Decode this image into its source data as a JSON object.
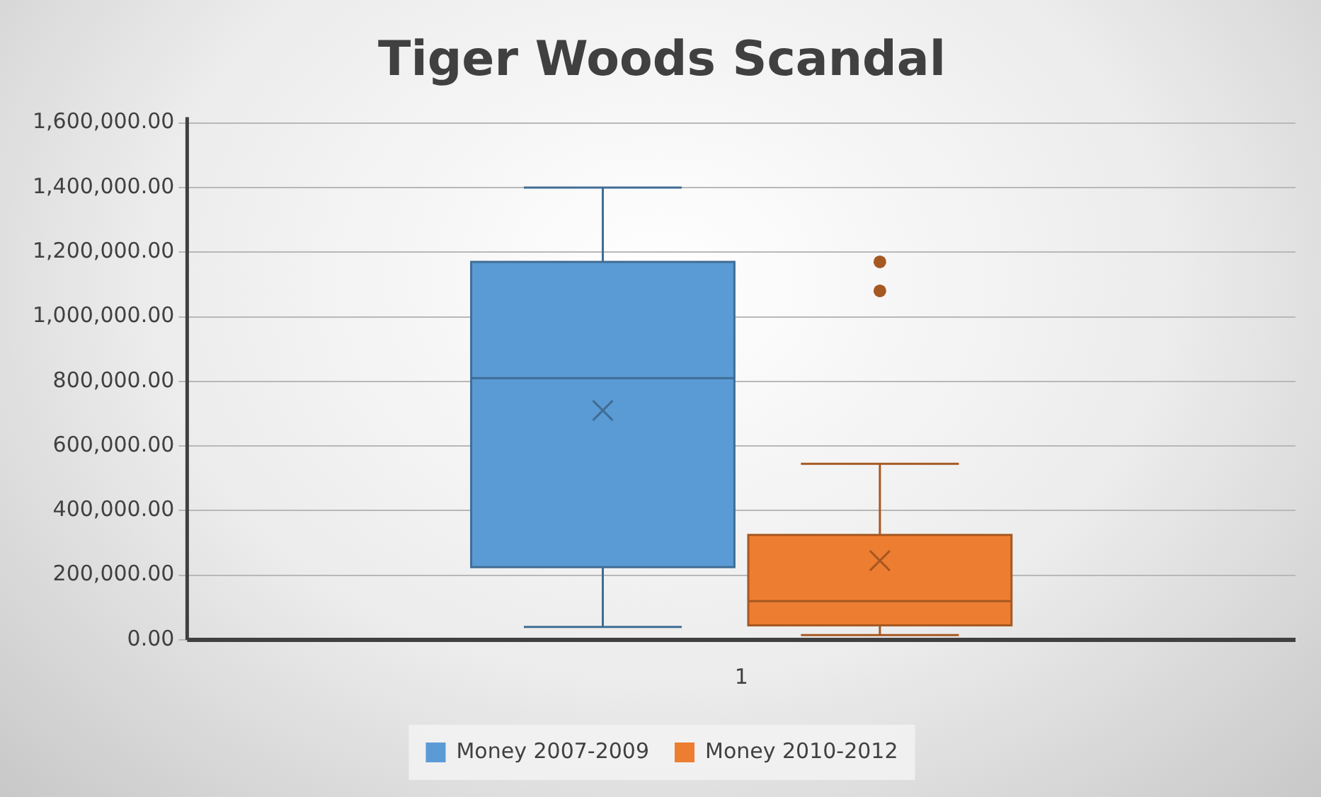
{
  "chart_data": {
    "type": "box",
    "title": "Tiger Woods Scandal",
    "categories": [
      "1"
    ],
    "series": [
      {
        "name": "Money 2007-2009",
        "color": "#5b9bd5",
        "boxes": [
          {
            "low": 40000,
            "q1": 225000,
            "median": 810000,
            "q3": 1170000,
            "high": 1400000,
            "mean": 710000
          }
        ]
      },
      {
        "name": "Money 2010-2012",
        "color": "#ed7d31",
        "boxes": [
          {
            "low": 15000,
            "q1": 45000,
            "median": 120000,
            "q3": 325000,
            "high": 545000,
            "mean": 245000,
            "outliers": [
              1080000,
              1170000
            ]
          }
        ]
      }
    ],
    "ylim": [
      0,
      1600000
    ],
    "yticks": [
      {
        "value": 0,
        "label": "0.00"
      },
      {
        "value": 200000,
        "label": "200,000.00"
      },
      {
        "value": 400000,
        "label": "400,000.00"
      },
      {
        "value": 600000,
        "label": "600,000.00"
      },
      {
        "value": 800000,
        "label": "800,000.00"
      },
      {
        "value": 1000000,
        "label": "1,000,000.00"
      },
      {
        "value": 1200000,
        "label": "1,200,000.00"
      },
      {
        "value": 1400000,
        "label": "1,400,000.00"
      },
      {
        "value": 1600000,
        "label": "1,600,000.00"
      }
    ],
    "grid": "y",
    "legend": "bottom"
  }
}
